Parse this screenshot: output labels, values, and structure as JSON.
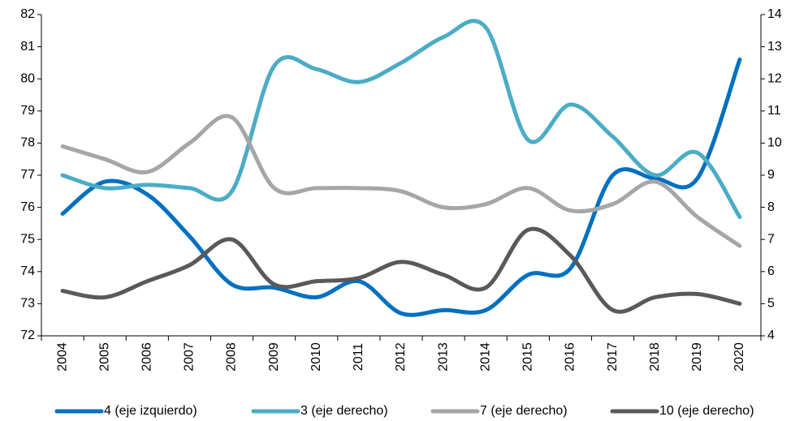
{
  "chart_data": {
    "type": "line",
    "categories": [
      "2004",
      "2005",
      "2006",
      "2007",
      "2008",
      "2009",
      "2010",
      "2011",
      "2012",
      "2013",
      "2014",
      "2015",
      "2016",
      "2017",
      "2018",
      "2019",
      "2020"
    ],
    "series": [
      {
        "name": "4 (eje izquierdo)",
        "color": "#0070c0",
        "axis": "y",
        "values": [
          75.8,
          76.8,
          76.4,
          75.1,
          73.6,
          73.5,
          73.2,
          73.7,
          72.7,
          72.8,
          72.8,
          73.9,
          74.1,
          77.0,
          76.9,
          76.9,
          80.6
        ]
      },
      {
        "name": "3 (eje derecho)",
        "color": "#4bacc6",
        "axis": "y2",
        "values": [
          9.0,
          8.6,
          8.7,
          8.6,
          8.5,
          12.4,
          12.3,
          11.9,
          12.5,
          13.3,
          13.6,
          10.1,
          11.2,
          10.2,
          9.0,
          9.7,
          7.7
        ]
      },
      {
        "name": "7 (eje derecho)",
        "color": "#a6a6a6",
        "axis": "y2",
        "values": [
          9.9,
          9.5,
          9.1,
          10.0,
          10.8,
          8.6,
          8.6,
          8.6,
          8.5,
          8.0,
          8.1,
          8.6,
          7.9,
          8.1,
          8.8,
          7.7,
          6.8
        ]
      },
      {
        "name": "10 (eje derecho)",
        "color": "#595959",
        "axis": "y2",
        "values": [
          5.4,
          5.2,
          5.7,
          6.2,
          7.0,
          5.6,
          5.7,
          5.8,
          6.3,
          5.9,
          5.5,
          7.3,
          6.5,
          4.8,
          5.2,
          5.3,
          5.0
        ]
      }
    ],
    "ylim": [
      72,
      82
    ],
    "yticks": [
      72,
      73,
      74,
      75,
      76,
      77,
      78,
      79,
      80,
      81,
      82
    ],
    "y2lim": [
      4,
      14
    ],
    "y2ticks": [
      4,
      5,
      6,
      7,
      8,
      9,
      10,
      11,
      12,
      13,
      14
    ],
    "legend": "bottom"
  }
}
